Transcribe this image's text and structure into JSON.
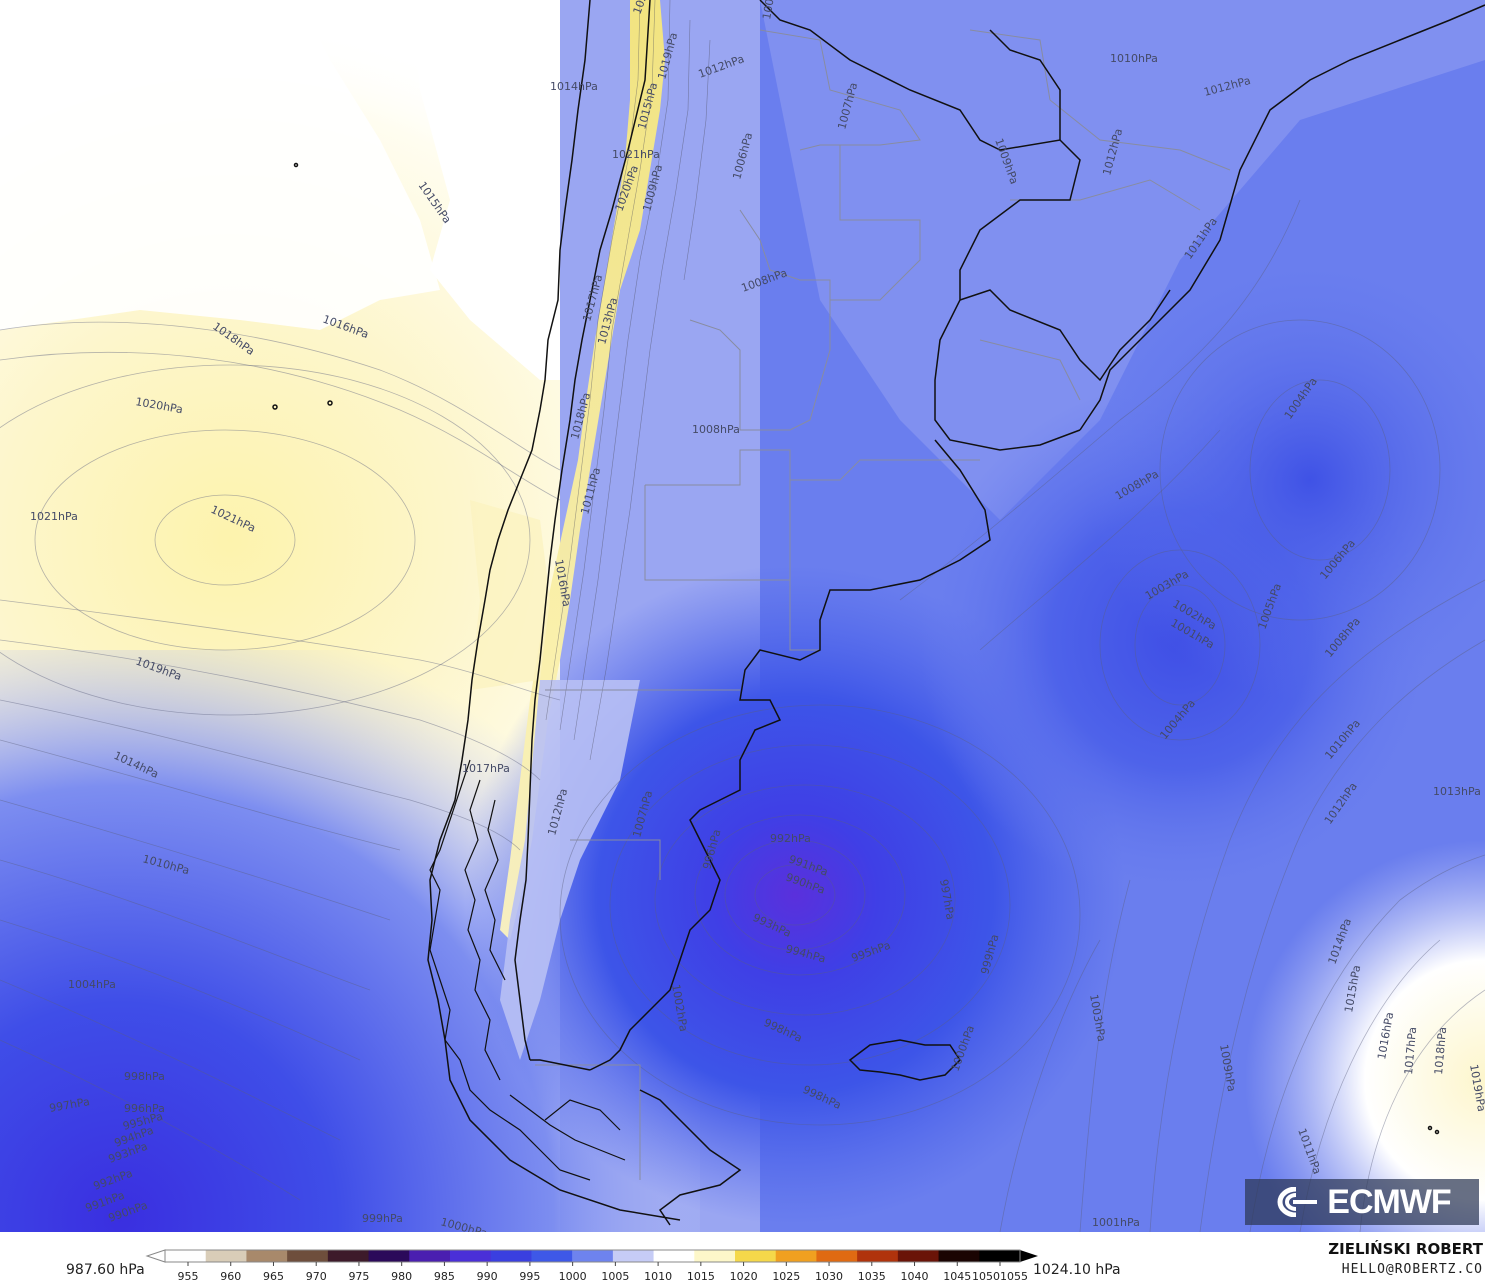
{
  "branding": {
    "logo": "ECMWF",
    "author": "ZIELIŃSKI ROBERT",
    "email": "HELLO@ROBERTZ.CO"
  },
  "legend": {
    "min_label": "987.60 hPa",
    "max_label": "1024.10 hPa",
    "ticks": [
      "955",
      "960",
      "965",
      "970",
      "975",
      "980",
      "985",
      "990",
      "995",
      "1000",
      "1005",
      "1010",
      "1015",
      "1020",
      "1025",
      "1030",
      "1035",
      "1040",
      "1045",
      "10501055"
    ],
    "colors": [
      "#fefefe",
      "#d9cdb8",
      "#a8896b",
      "#6e4e3c",
      "#3d1a2a",
      "#2b0a5a",
      "#4a1fb0",
      "#4a2fd8",
      "#3a3fe0",
      "#3e58e8",
      "#6e83ee",
      "#c6ccf6",
      "#ffffff",
      "#fdf7c9",
      "#f5d84a",
      "#f0a020",
      "#e06a12",
      "#b0330c",
      "#6a1408",
      "#1a0402",
      "#000000"
    ]
  },
  "labels": [
    {
      "text": "1020hPa"
    },
    {
      "text": "1005hPa"
    },
    {
      "text": "1014hPa"
    },
    {
      "text": "1012hPa"
    },
    {
      "text": "1019hPa"
    },
    {
      "text": "1015hPa"
    },
    {
      "text": "1021hPa"
    },
    {
      "text": "1010hPa"
    },
    {
      "text": "1012hPa"
    },
    {
      "text": "1009hPa"
    },
    {
      "text": "1007hPa"
    },
    {
      "text": "1006hPa"
    },
    {
      "text": "1015hPa"
    },
    {
      "text": "1020hPa"
    },
    {
      "text": "1009hPa"
    },
    {
      "text": "1012hPa"
    },
    {
      "text": "1011hPa"
    },
    {
      "text": "1018hPa"
    },
    {
      "text": "1016hPa"
    },
    {
      "text": "1008hPa"
    },
    {
      "text": "1017hPa"
    },
    {
      "text": "1013hPa"
    },
    {
      "text": "1020hPa"
    },
    {
      "text": "1018hPa"
    },
    {
      "text": "1008hPa"
    },
    {
      "text": "1004hPa"
    },
    {
      "text": "1021hPa"
    },
    {
      "text": "1021hPa"
    },
    {
      "text": "1011hPa"
    },
    {
      "text": "1008hPa"
    },
    {
      "text": "1016hPa"
    },
    {
      "text": "1003hPa"
    },
    {
      "text": "1002hPa"
    },
    {
      "text": "1001hPa"
    },
    {
      "text": "1005hPa"
    },
    {
      "text": "1006hPa"
    },
    {
      "text": "1019hPa"
    },
    {
      "text": "1008hPa"
    },
    {
      "text": "1004hPa"
    },
    {
      "text": "1010hPa"
    },
    {
      "text": "1014hPa"
    },
    {
      "text": "1017hPa"
    },
    {
      "text": "1013hPa"
    },
    {
      "text": "1012hPa"
    },
    {
      "text": "1012hPa"
    },
    {
      "text": "1007hPa"
    },
    {
      "text": "996hPa"
    },
    {
      "text": "992hPa"
    },
    {
      "text": "991hPa"
    },
    {
      "text": "990hPa"
    },
    {
      "text": "1010hPa"
    },
    {
      "text": "997hPa"
    },
    {
      "text": "993hPa"
    },
    {
      "text": "994hPa"
    },
    {
      "text": "995hPa"
    },
    {
      "text": "999hPa"
    },
    {
      "text": "1002hPa"
    },
    {
      "text": "1014hPa"
    },
    {
      "text": "1004hPa"
    },
    {
      "text": "1003hPa"
    },
    {
      "text": "998hPa"
    },
    {
      "text": "1015hPa"
    },
    {
      "text": "1000hPa"
    },
    {
      "text": "1009hPa"
    },
    {
      "text": "1016hPa"
    },
    {
      "text": "1017hPa"
    },
    {
      "text": "1018hPa"
    },
    {
      "text": "1019hPa"
    },
    {
      "text": "998hPa"
    },
    {
      "text": "998hPa"
    },
    {
      "text": "997hPa"
    },
    {
      "text": "996hPa"
    },
    {
      "text": "995hPa"
    },
    {
      "text": "994hPa"
    },
    {
      "text": "993hPa"
    },
    {
      "text": "992hPa"
    },
    {
      "text": "991hPa"
    },
    {
      "text": "990hPa"
    },
    {
      "text": "1011hPa"
    },
    {
      "text": "999hPa"
    },
    {
      "text": "1000hPa"
    },
    {
      "text": "1001hPa"
    }
  ]
}
